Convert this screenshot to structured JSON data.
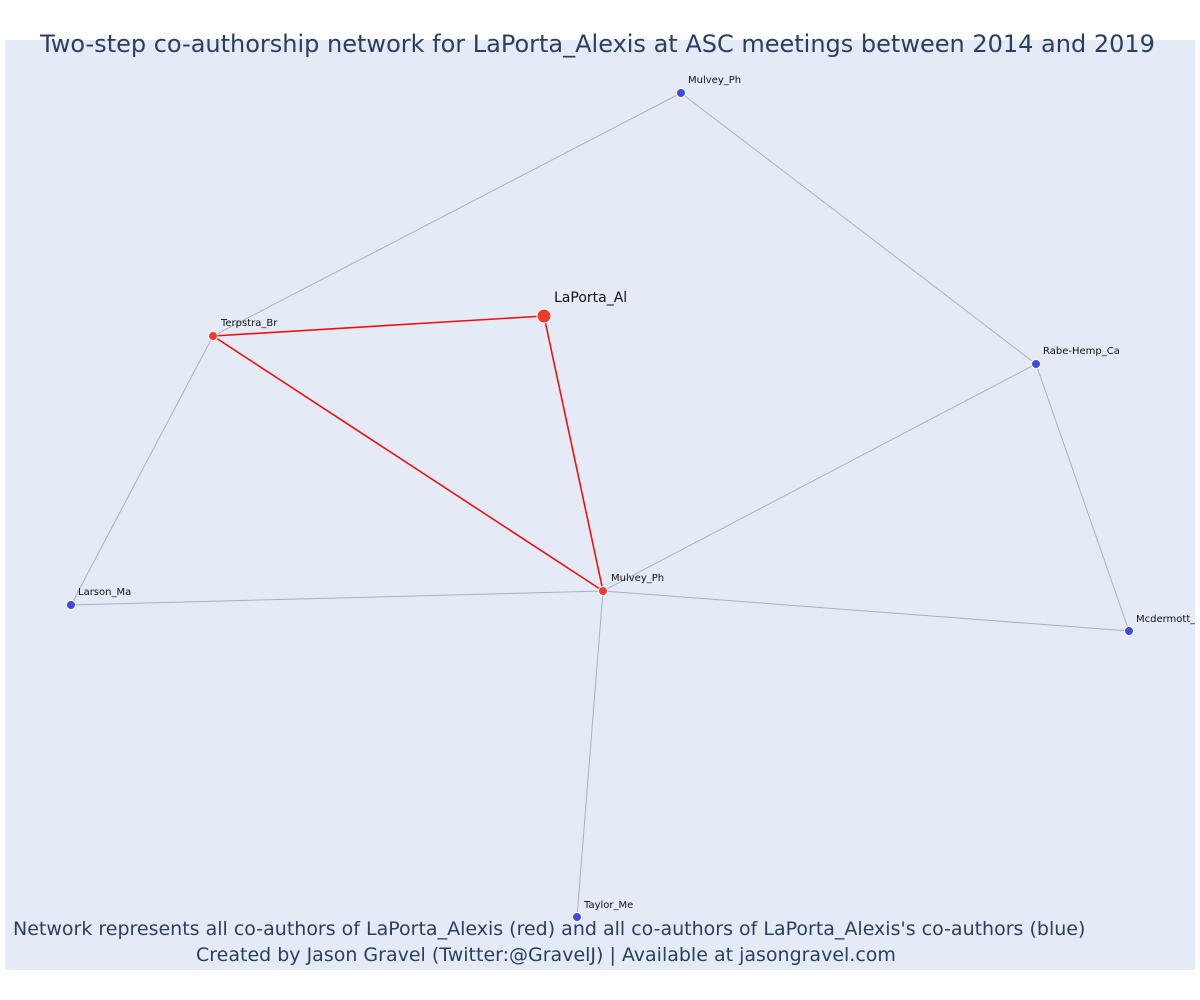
{
  "title": "Two-step co-authorship network for LaPorta_Alexis at ASC meetings between 2014 and 2019",
  "footnote": {
    "line1": "Network represents all co-authors of LaPorta_Alexis (red) and all co-authors of LaPorta_Alexis's co-authors (blue)",
    "line2": "Created by Jason Gravel (Twitter:@GravelJ) | Available at jasongravel.com"
  },
  "colors": {
    "focal": "#ef3b2c",
    "coauthor": "#ef3b2c",
    "second_step": "#3f4ae0",
    "red_edge": "#ee1111",
    "grey_edge": "#a9b0c3",
    "background": "#e5ebf6",
    "title_text": "#2a3f5f"
  },
  "network": {
    "nodes": [
      {
        "id": "laporta",
        "label": "LaPorta_Al",
        "group": "focal"
      },
      {
        "id": "terpstra",
        "label": "Terpstra_Br",
        "group": "coauthor"
      },
      {
        "id": "mulvey_center",
        "label": "Mulvey_Ph",
        "group": "coauthor"
      },
      {
        "id": "mulvey_top",
        "label": "Mulvey_Ph",
        "group": "second_step"
      },
      {
        "id": "rabe",
        "label": "Rabe-Hemp_Ca",
        "group": "second_step"
      },
      {
        "id": "larson",
        "label": "Larson_Ma",
        "group": "second_step"
      },
      {
        "id": "mcdermott",
        "label": "Mcdermott_C",
        "group": "second_step"
      },
      {
        "id": "taylor",
        "label": "Taylor_Me",
        "group": "second_step"
      }
    ],
    "edges": [
      {
        "source": "laporta",
        "target": "terpstra",
        "type": "red"
      },
      {
        "source": "laporta",
        "target": "mulvey_center",
        "type": "red"
      },
      {
        "source": "terpstra",
        "target": "mulvey_center",
        "type": "red"
      },
      {
        "source": "terpstra",
        "target": "mulvey_top",
        "type": "grey"
      },
      {
        "source": "terpstra",
        "target": "larson",
        "type": "grey"
      },
      {
        "source": "mulvey_top",
        "target": "rabe",
        "type": "grey"
      },
      {
        "source": "rabe",
        "target": "mulvey_center",
        "type": "grey"
      },
      {
        "source": "rabe",
        "target": "mcdermott",
        "type": "grey"
      },
      {
        "source": "mulvey_center",
        "target": "larson",
        "type": "grey"
      },
      {
        "source": "mulvey_center",
        "target": "mcdermott",
        "type": "grey"
      },
      {
        "source": "mulvey_center",
        "target": "taylor",
        "type": "grey"
      }
    ]
  }
}
